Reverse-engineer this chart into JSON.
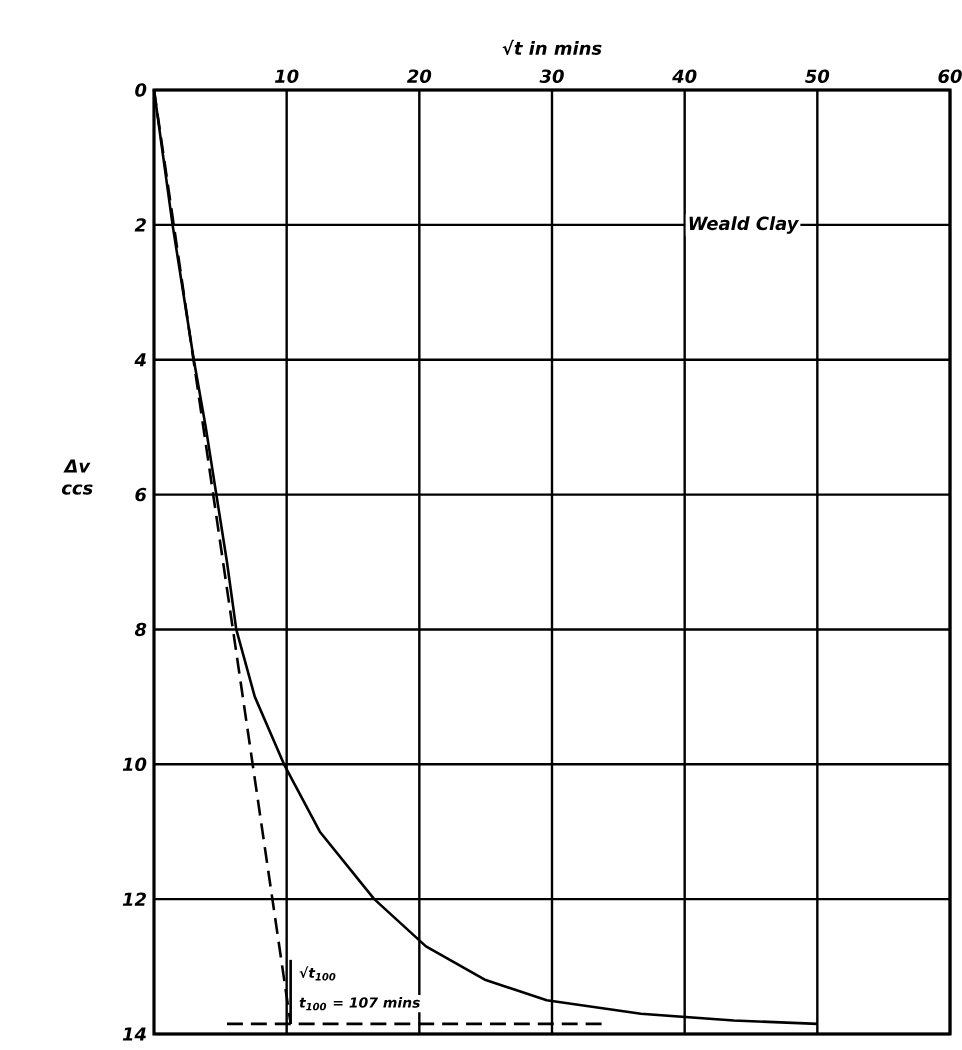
{
  "chart_data": {
    "type": "line",
    "xlabel": "√t in mins",
    "ylabel": "Δv ccs",
    "xlim": [
      0,
      60
    ],
    "xticks": [
      10,
      20,
      30,
      40,
      50,
      60
    ],
    "ylim": [
      14,
      0
    ],
    "yticks": [
      0,
      2,
      4,
      6,
      8,
      10,
      12,
      14
    ],
    "grid": true,
    "marker": "none",
    "series": [
      {
        "color": "#000000",
        "line_style": "solid",
        "x": [
          0,
          0.7,
          1.4,
          2.2,
          3.0,
          3.9,
          4.7,
          5.5,
          6.2,
          7.6,
          9.8,
          12.5,
          16.6,
          20.5,
          25,
          29.6,
          36.7,
          43.7,
          50
        ],
        "values": [
          0,
          1,
          2,
          3,
          4,
          5,
          6,
          7,
          8,
          9,
          10,
          11,
          12,
          12.7,
          13.2,
          13.5,
          13.7,
          13.8,
          13.85
        ]
      },
      {
        "color": "#000000",
        "line_style": "dashed",
        "x": [
          0,
          10.3
        ],
        "values": [
          0,
          13.85
        ]
      },
      {
        "color": "#000000",
        "line_style": "dashed",
        "x": [
          5.5,
          34
        ],
        "values": [
          13.85,
          13.85
        ]
      },
      {
        "color": "#000000",
        "line_style": "solid",
        "x": [
          10.3,
          10.3
        ],
        "values": [
          13.85,
          12.9
        ]
      }
    ],
    "annotations": [
      "Weald Clay",
      {
        "text": "√t$_{100}$",
        "x": 10.3,
        "y": 13.1
      },
      {
        "text": "t$_{100}$ = 107 mins",
        "x": 10.3,
        "y": 13.55
      }
    ]
  }
}
